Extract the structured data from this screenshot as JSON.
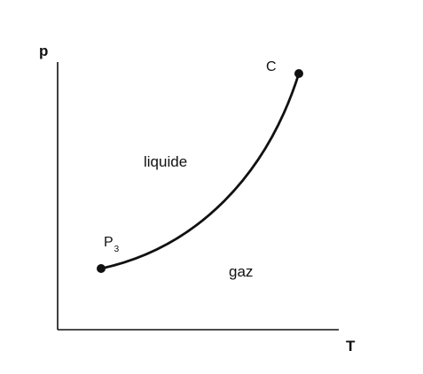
{
  "axes": {
    "y_label": "p",
    "x_label": "T"
  },
  "regions": {
    "liquid": "liquide",
    "gas": "gaz"
  },
  "points": {
    "triple": {
      "label": "P",
      "subscript": "3"
    },
    "critical": {
      "label": "C"
    }
  },
  "colors": {
    "ink": "#111111",
    "background": "#ffffff"
  }
}
